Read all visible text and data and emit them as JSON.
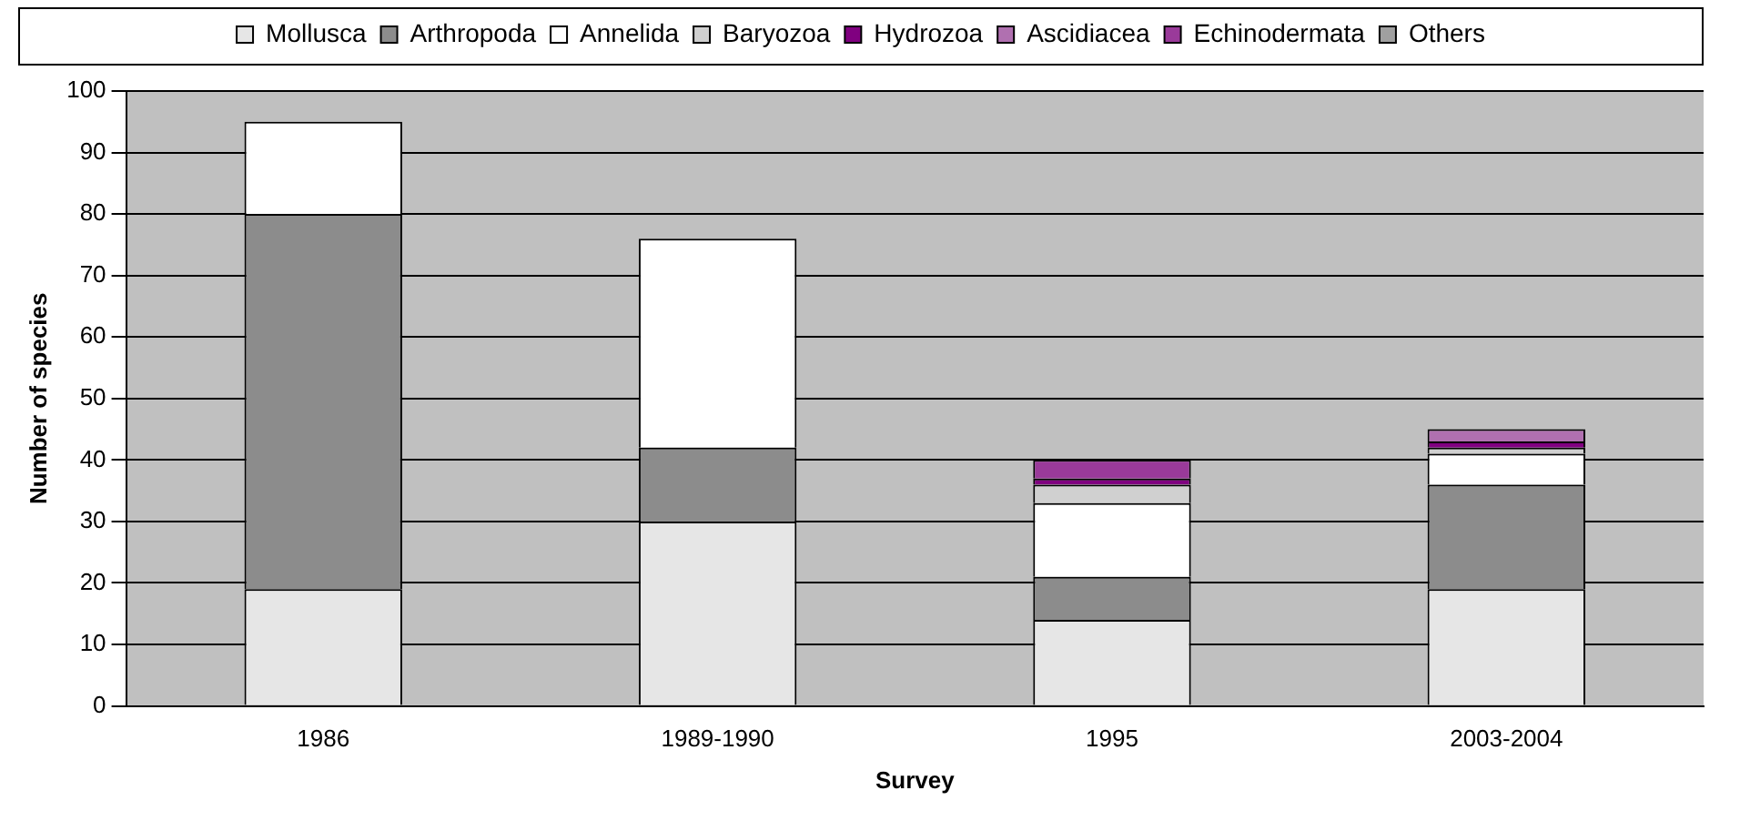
{
  "chart_data": {
    "type": "bar",
    "stacked": true,
    "xlabel": "Survey",
    "ylabel": "Number of species",
    "categories": [
      "1986",
      "1989-1990",
      "1995",
      "2003-2004"
    ],
    "series": [
      {
        "name": "Mollusca",
        "color": "#e6e6e6",
        "values": [
          19,
          30,
          14,
          19
        ]
      },
      {
        "name": "Arthropoda",
        "color": "#8c8c8c",
        "values": [
          61,
          12,
          7,
          17
        ]
      },
      {
        "name": "Annelida",
        "color": "#ffffff",
        "values": [
          15,
          34,
          12,
          5
        ]
      },
      {
        "name": "Baryozoa",
        "color": "#d0d0d0",
        "values": [
          0,
          0,
          3,
          1
        ]
      },
      {
        "name": "Hydrozoa",
        "color": "#800080",
        "values": [
          0,
          0,
          1,
          1
        ]
      },
      {
        "name": "Ascidiacea",
        "color": "#b070b0",
        "values": [
          0,
          0,
          0,
          2
        ]
      },
      {
        "name": "Echinodermata",
        "color": "#9a3a9a",
        "values": [
          0,
          0,
          3,
          0
        ]
      },
      {
        "name": "Others",
        "color": "#a0a0a0",
        "values": [
          0,
          0,
          0,
          0
        ]
      }
    ],
    "ylim": [
      0,
      100
    ],
    "yticks": [
      0,
      10,
      20,
      30,
      40,
      50,
      60,
      70,
      80,
      90,
      100
    ],
    "grid": "y",
    "legend": "top"
  }
}
